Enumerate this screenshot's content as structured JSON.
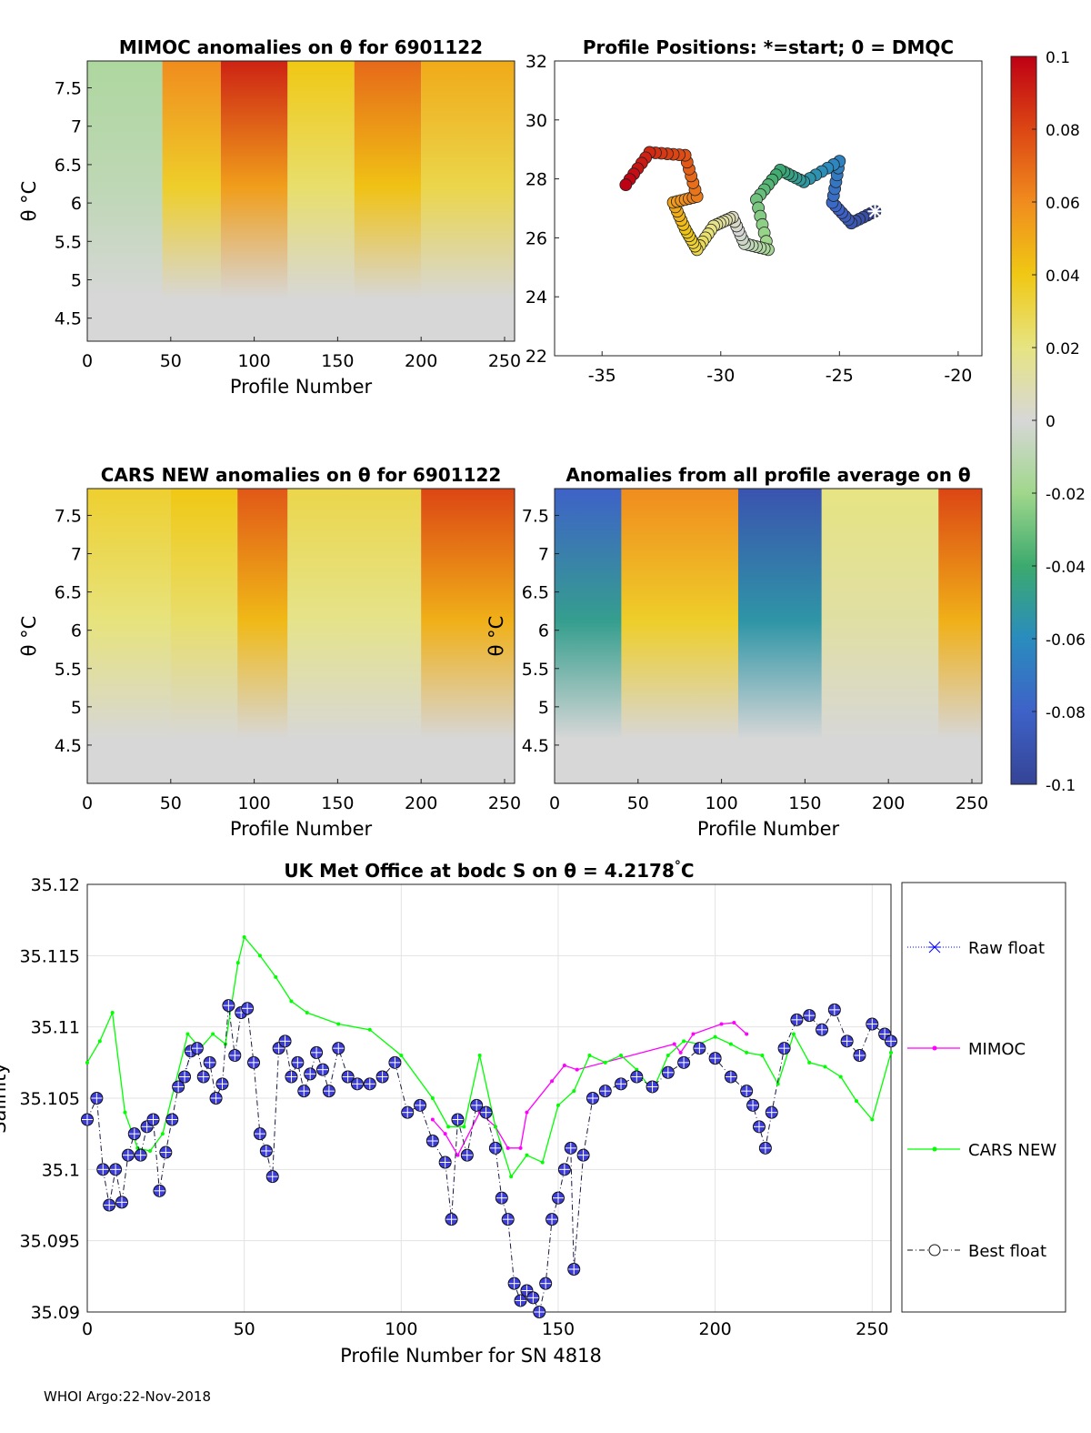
{
  "chart_data": [
    {
      "id": "mimoc",
      "type": "heatmap",
      "title": "MIMOC anomalies on θ  for 6901122",
      "xlabel": "Profile Number",
      "ylabel": "θ °C",
      "xlim": [
        0,
        256
      ],
      "ylim": [
        4.2,
        7.85
      ],
      "xticks": [
        0,
        50,
        100,
        150,
        200,
        250
      ],
      "yticks": [
        4.5,
        5,
        5.5,
        6,
        6.5,
        7,
        7.5
      ],
      "bands": [
        {
          "from": 0,
          "to": 45,
          "value": -0.015
        },
        {
          "from": 45,
          "to": 80,
          "value": 0.06
        },
        {
          "from": 80,
          "to": 120,
          "value": 0.09
        },
        {
          "from": 120,
          "to": 160,
          "value": 0.04
        },
        {
          "from": 160,
          "to": 200,
          "value": 0.07
        },
        {
          "from": 200,
          "to": 256,
          "value": 0.05
        }
      ]
    },
    {
      "id": "positions",
      "type": "scatter",
      "title": "Profile Positions: *=start; 0 = DMQC",
      "xlim": [
        -37,
        -19
      ],
      "ylim": [
        22,
        32
      ],
      "xticks": [
        -35,
        -30,
        -25,
        -20
      ],
      "yticks": [
        22,
        24,
        26,
        28,
        30,
        32
      ],
      "track_lon": [
        -23.5,
        -24.5,
        -25.3,
        -25.0,
        -26.5,
        -27.5,
        -28.5,
        -28.0,
        -29.0,
        -29.5,
        -30.3,
        -31.0,
        -31.5,
        -32.0,
        -31.0,
        -31.5,
        -33.0,
        -34.0
      ],
      "track_lat": [
        26.9,
        26.5,
        27.2,
        28.6,
        27.9,
        28.3,
        27.3,
        25.6,
        25.8,
        26.7,
        26.4,
        25.6,
        26.3,
        27.2,
        27.4,
        28.8,
        28.9,
        27.8
      ]
    },
    {
      "id": "cars",
      "type": "heatmap",
      "title": "CARS NEW anomalies on θ for 6901122",
      "xlabel": "Profile Number",
      "ylabel": "θ °C",
      "xlim": [
        0,
        256
      ],
      "ylim": [
        4.0,
        7.85
      ],
      "xticks": [
        0,
        50,
        100,
        150,
        200,
        250
      ],
      "yticks": [
        4.5,
        5,
        5.5,
        6,
        6.5,
        7,
        7.5
      ],
      "bands": [
        {
          "from": 0,
          "to": 50,
          "value": 0.035
        },
        {
          "from": 50,
          "to": 90,
          "value": 0.04
        },
        {
          "from": 90,
          "to": 120,
          "value": 0.075
        },
        {
          "from": 120,
          "to": 200,
          "value": 0.03
        },
        {
          "from": 200,
          "to": 256,
          "value": 0.08
        }
      ]
    },
    {
      "id": "allprof",
      "type": "heatmap",
      "title": "Anomalies from all profile average on θ",
      "xlabel": "Profile Number",
      "ylabel": "θ °C",
      "xlim": [
        0,
        256
      ],
      "ylim": [
        4.0,
        7.85
      ],
      "xticks": [
        0,
        50,
        100,
        150,
        200,
        250
      ],
      "yticks": [
        4.5,
        5,
        5.5,
        6,
        6.5,
        7,
        7.5
      ],
      "bands": [
        {
          "from": 0,
          "to": 40,
          "value": -0.08
        },
        {
          "from": 40,
          "to": 110,
          "value": 0.06
        },
        {
          "from": 110,
          "to": 160,
          "value": -0.09
        },
        {
          "from": 160,
          "to": 230,
          "value": 0.02
        },
        {
          "from": 230,
          "to": 256,
          "value": 0.08
        }
      ]
    },
    {
      "id": "salinity",
      "type": "line",
      "title": "UK Met Office at bodc S on θ = 4.2178",
      "title_unit": "°C",
      "xlabel": "Profile Number for SN 4818",
      "ylabel": "Salinity",
      "xlim": [
        0,
        256
      ],
      "ylim": [
        35.09,
        35.12
      ],
      "xticks": [
        0,
        50,
        100,
        150,
        200,
        250
      ],
      "yticks": [
        35.09,
        35.095,
        35.1,
        35.105,
        35.11,
        35.115,
        35.12
      ],
      "ytick_labels": [
        "35.09",
        "35.095",
        "35.1",
        "35.105",
        "35.11",
        "35.115",
        "35.12"
      ],
      "series": [
        {
          "name": "Raw float",
          "color": "#0000ff",
          "x": [
            29,
            34
          ],
          "y": [
            35.1058,
            35.1085
          ]
        },
        {
          "name": "MIMOC",
          "color": "#ff00ff",
          "x": [
            110,
            114,
            118,
            125,
            130,
            134,
            138,
            140,
            148,
            152,
            156,
            187,
            189,
            193,
            202,
            206,
            210
          ],
          "y": [
            35.1035,
            35.1025,
            35.101,
            35.104,
            35.103,
            35.1015,
            35.1015,
            35.104,
            35.1062,
            35.1073,
            35.107,
            35.1088,
            35.1082,
            35.1095,
            35.1102,
            35.1103,
            35.1095
          ]
        },
        {
          "name": "CARS NEW",
          "color": "#00ff00",
          "x": [
            0,
            4,
            8,
            12,
            16,
            20,
            24,
            28,
            32,
            36,
            40,
            44,
            48,
            50,
            55,
            60,
            65,
            70,
            80,
            90,
            100,
            110,
            115,
            120,
            125,
            130,
            135,
            140,
            145,
            150,
            155,
            160,
            165,
            170,
            175,
            180,
            185,
            190,
            195,
            200,
            205,
            210,
            215,
            220,
            225,
            230,
            235,
            240,
            245,
            250,
            256
          ],
          "y": [
            35.1075,
            35.109,
            35.111,
            35.104,
            35.1015,
            35.1013,
            35.1025,
            35.106,
            35.1095,
            35.1085,
            35.1095,
            35.1088,
            35.1145,
            35.1163,
            35.115,
            35.1135,
            35.1118,
            35.111,
            35.1102,
            35.1098,
            35.108,
            35.105,
            35.103,
            35.103,
            35.108,
            35.103,
            35.0995,
            35.101,
            35.1005,
            35.1045,
            35.1055,
            35.108,
            35.1075,
            35.108,
            35.107,
            35.1055,
            35.108,
            35.109,
            35.1088,
            35.1093,
            35.1088,
            35.1082,
            35.108,
            35.106,
            35.1095,
            35.1075,
            35.1072,
            35.1065,
            35.1048,
            35.1035,
            35.1082
          ]
        },
        {
          "name": "Best float",
          "color": "#000033",
          "x": [
            0,
            3,
            5,
            7,
            9,
            11,
            13,
            15,
            17,
            19,
            21,
            23,
            25,
            27,
            29,
            31,
            33,
            35,
            37,
            39,
            41,
            43,
            45,
            47,
            49,
            51,
            53,
            55,
            57,
            59,
            61,
            63,
            65,
            67,
            69,
            71,
            73,
            75,
            77,
            80,
            83,
            86,
            90,
            94,
            98,
            102,
            106,
            110,
            114,
            116,
            118,
            121,
            124,
            127,
            130,
            132,
            134,
            136,
            138,
            140,
            142,
            144,
            146,
            148,
            150,
            152,
            154,
            155,
            158,
            161,
            165,
            170,
            175,
            180,
            185,
            190,
            195,
            200,
            205,
            210,
            212,
            214,
            216,
            218,
            222,
            226,
            230,
            234,
            238,
            242,
            246,
            250,
            254,
            256
          ],
          "y": [
            35.1035,
            35.105,
            35.1,
            35.0975,
            35.1,
            35.0977,
            35.101,
            35.1025,
            35.101,
            35.103,
            35.1035,
            35.0985,
            35.1012,
            35.1035,
            35.1058,
            35.1065,
            35.1083,
            35.1085,
            35.1065,
            35.1075,
            35.105,
            35.106,
            35.1115,
            35.108,
            35.111,
            35.1113,
            35.1075,
            35.1025,
            35.1013,
            35.0995,
            35.1085,
            35.109,
            35.1065,
            35.1075,
            35.1055,
            35.1067,
            35.1082,
            35.107,
            35.1055,
            35.1085,
            35.1065,
            35.106,
            35.106,
            35.1065,
            35.1075,
            35.104,
            35.1045,
            35.102,
            35.1005,
            35.0965,
            35.1035,
            35.101,
            35.1045,
            35.104,
            35.1015,
            35.098,
            35.0965,
            35.092,
            35.0908,
            35.0915,
            35.091,
            35.09,
            35.092,
            35.0965,
            35.098,
            35.1,
            35.1015,
            35.093,
            35.101,
            35.105,
            35.1055,
            35.106,
            35.1065,
            35.1058,
            35.1068,
            35.1075,
            35.1085,
            35.1078,
            35.1065,
            35.1055,
            35.1045,
            35.103,
            35.1015,
            35.104,
            35.1085,
            35.1105,
            35.1108,
            35.1098,
            35.1112,
            35.109,
            35.108,
            35.1102,
            35.1095,
            35.109
          ]
        }
      ],
      "legend": [
        "Raw float",
        "MIMOC",
        "CARS NEW",
        "Best float"
      ],
      "legend_position": "right"
    }
  ],
  "colorbar": {
    "min": -0.1,
    "max": 0.1,
    "tick_labels": [
      "0.1",
      "0.08",
      "0.06",
      "0.04",
      "0.02",
      "0",
      "-0.02",
      "-0.04",
      "-0.06",
      "-0.08",
      "-0.1"
    ]
  },
  "footer": "WHOI Argo:22-Nov-2018"
}
